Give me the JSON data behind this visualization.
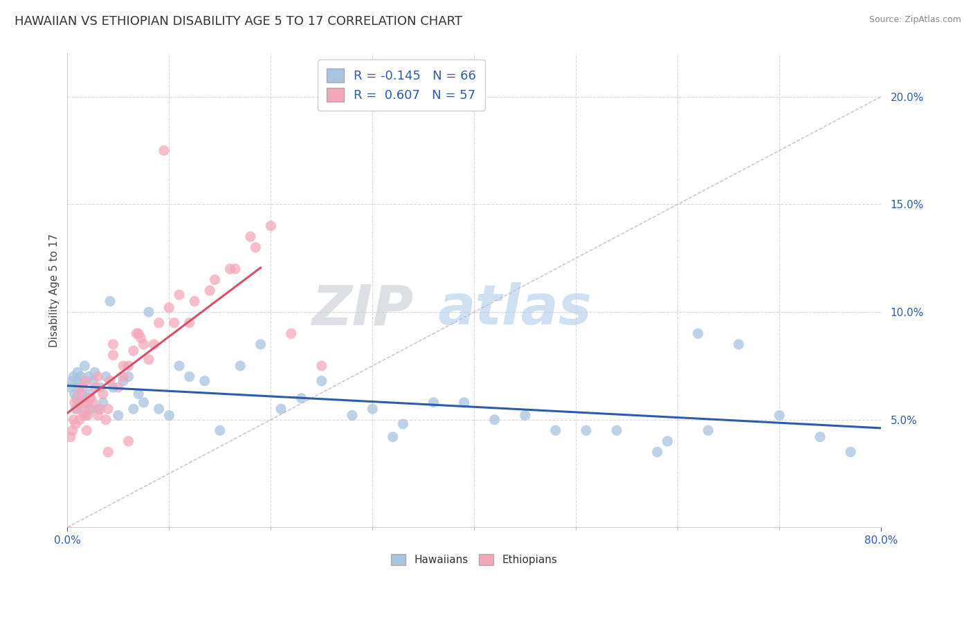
{
  "title": "HAWAIIAN VS ETHIOPIAN DISABILITY AGE 5 TO 17 CORRELATION CHART",
  "source": "Source: ZipAtlas.com",
  "ylabel": "Disability Age 5 to 17",
  "xlim": [
    0.0,
    80.0
  ],
  "ylim": [
    0.0,
    22.0
  ],
  "yticks": [
    5.0,
    10.0,
    15.0,
    20.0
  ],
  "xticks_minor": [
    10,
    20,
    30,
    40,
    50,
    60,
    70
  ],
  "hawaiian_R": -0.145,
  "hawaiian_N": 66,
  "ethiopian_R": 0.607,
  "ethiopian_N": 57,
  "hawaiian_color": "#a8c4e0",
  "ethiopian_color": "#f4a7b9",
  "hawaiian_line_color": "#2a5caa",
  "ethiopian_line_color": "#d94f6a",
  "diagonal_line_color": "#d0b0b8",
  "background_color": "#ffffff",
  "grid_color": "#d8d8d8",
  "hawaiian_x": [
    0.3,
    0.5,
    0.6,
    0.7,
    0.8,
    0.9,
    1.0,
    1.0,
    1.1,
    1.2,
    1.3,
    1.4,
    1.5,
    1.6,
    1.7,
    1.8,
    1.9,
    2.0,
    2.1,
    2.2,
    2.3,
    2.5,
    2.7,
    3.0,
    3.2,
    3.5,
    3.8,
    4.2,
    4.5,
    5.0,
    5.5,
    6.0,
    6.5,
    7.0,
    7.5,
    8.0,
    9.0,
    10.0,
    11.0,
    12.0,
    13.5,
    15.0,
    17.0,
    19.0,
    21.0,
    23.0,
    25.0,
    28.0,
    30.0,
    33.0,
    36.0,
    39.0,
    42.0,
    45.0,
    48.0,
    51.0,
    54.0,
    58.0,
    62.0,
    66.0,
    70.0,
    74.0,
    77.0,
    32.0,
    59.0,
    63.0
  ],
  "hawaiian_y": [
    6.5,
    6.8,
    7.0,
    6.2,
    5.5,
    6.0,
    7.2,
    6.8,
    5.8,
    6.5,
    7.0,
    6.2,
    5.5,
    6.8,
    7.5,
    5.2,
    6.0,
    5.8,
    7.0,
    6.2,
    5.5,
    6.8,
    7.2,
    5.5,
    6.5,
    5.8,
    7.0,
    10.5,
    6.5,
    5.2,
    6.8,
    7.0,
    5.5,
    6.2,
    5.8,
    10.0,
    5.5,
    5.2,
    7.5,
    7.0,
    6.8,
    4.5,
    7.5,
    8.5,
    5.5,
    6.0,
    6.8,
    5.2,
    5.5,
    4.8,
    5.8,
    5.8,
    5.0,
    5.2,
    4.5,
    4.5,
    4.5,
    3.5,
    9.0,
    8.5,
    5.2,
    4.2,
    3.5,
    4.2,
    4.0,
    4.5
  ],
  "ethiopian_x": [
    0.3,
    0.5,
    0.6,
    0.7,
    0.8,
    1.0,
    1.1,
    1.2,
    1.3,
    1.5,
    1.6,
    1.7,
    1.8,
    1.9,
    2.0,
    2.1,
    2.3,
    2.5,
    2.8,
    3.0,
    3.2,
    3.5,
    3.8,
    4.0,
    4.2,
    4.5,
    5.0,
    5.5,
    6.0,
    6.5,
    7.0,
    7.5,
    8.0,
    9.0,
    10.0,
    11.0,
    12.0,
    14.0,
    16.0,
    18.0,
    2.2,
    3.0,
    4.5,
    5.5,
    6.8,
    7.2,
    8.5,
    10.5,
    12.5,
    14.5,
    16.5,
    18.5,
    20.0,
    22.0,
    25.0,
    4.0,
    6.0
  ],
  "ethiopian_y": [
    4.2,
    4.5,
    5.0,
    5.8,
    4.8,
    5.5,
    6.2,
    5.0,
    5.8,
    6.5,
    5.2,
    5.8,
    6.8,
    4.5,
    5.2,
    5.5,
    6.0,
    5.8,
    6.5,
    5.2,
    5.5,
    6.2,
    5.0,
    5.5,
    6.8,
    8.0,
    6.5,
    7.0,
    7.5,
    8.2,
    9.0,
    8.5,
    7.8,
    9.5,
    10.2,
    10.8,
    9.5,
    11.0,
    12.0,
    13.5,
    6.0,
    7.0,
    8.5,
    7.5,
    9.0,
    8.8,
    8.5,
    9.5,
    10.5,
    11.5,
    12.0,
    13.0,
    14.0,
    9.0,
    7.5,
    3.5,
    4.0
  ],
  "ethiopian_outlier_x": 9.5,
  "ethiopian_outlier_y": 17.5,
  "ethiopian_line_x0": 0.0,
  "ethiopian_line_x1": 19.0,
  "hawaiian_line_x0": 0.0,
  "hawaiian_line_x1": 80.0,
  "watermark_zip": "ZIP",
  "watermark_atlas": "atlas",
  "legend_label_hawaiian": "R = -0.145   N = 66",
  "legend_label_ethiopian": "R =  0.607   N = 57",
  "bottom_legend_hawaiians": "Hawaiians",
  "bottom_legend_ethiopians": "Ethiopians"
}
